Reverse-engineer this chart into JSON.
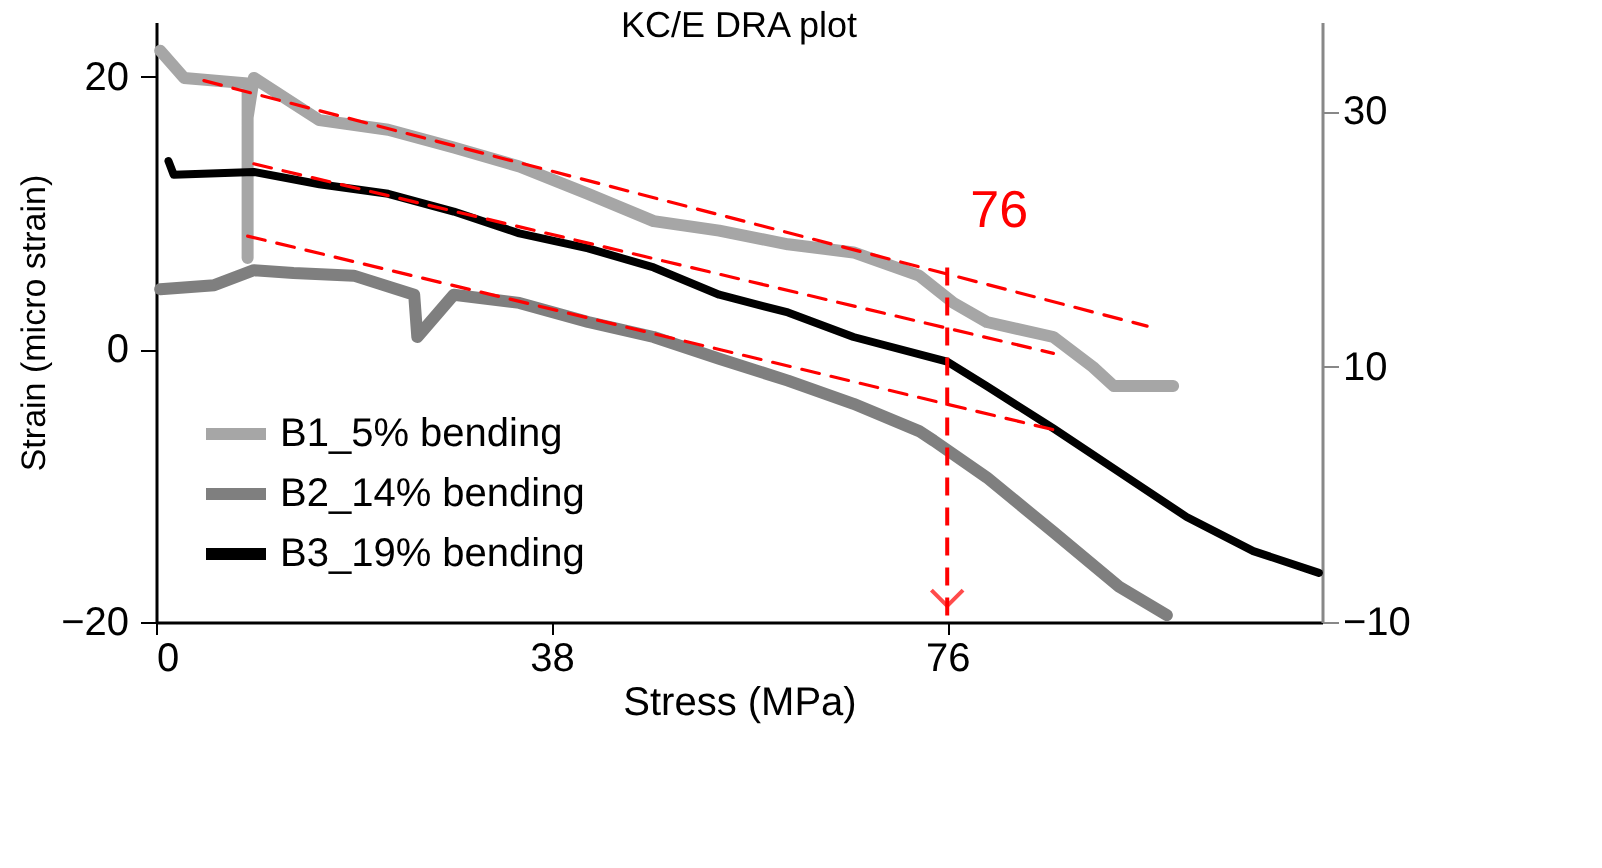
{
  "chart_data": {
    "type": "line",
    "title": "KC/E DRA plot",
    "xlabel": "Stress (MPa)",
    "ylabel": "Strain (micro strain)",
    "xlim": [
      0,
      112
    ],
    "xticks": [
      0,
      38,
      76
    ],
    "ylim": [
      -20,
      24
    ],
    "yticks": [
      -20,
      0,
      20
    ],
    "y2lim": [
      -10,
      37
    ],
    "y2ticks": [
      -10,
      10,
      30
    ],
    "grid": false,
    "legend": "bottom left",
    "marker": "none",
    "line_style": "solid",
    "series": [
      {
        "name": "B1_5% bending",
        "color": "#a6a6a6",
        "x": [
          0.4,
          2.7,
          8.8,
          8.8,
          8.8,
          9.4,
          15.7,
          22.3,
          28.6,
          34.9,
          41.5,
          47.8,
          54.1,
          60.7,
          67,
          73.3,
          76.6,
          79.8,
          86.2,
          90,
          92,
          97.7
        ],
        "values": [
          21.9,
          19.9,
          19.5,
          6.7,
          17.0,
          19.9,
          16.8,
          16.1,
          14.8,
          13.4,
          11.4,
          9.4,
          8.7,
          7.7,
          7.1,
          5.4,
          3.4,
          2.0,
          0.9,
          -1.3,
          -2.7,
          -2.7
        ]
      },
      {
        "name": "B2_14% bending",
        "color": "#7f7f7f",
        "x": [
          0.4,
          5.6,
          9.4,
          13.2,
          19,
          24.8,
          25.1,
          28.6,
          34.9,
          41.5,
          47.8,
          54.1,
          60.7,
          67,
          73.3,
          74.7,
          79.8,
          86.2,
          92.5,
          97.1
        ],
        "values": [
          4.4,
          4.7,
          5.8,
          5.6,
          5.4,
          4.0,
          0.9,
          4.0,
          3.4,
          2.0,
          0.9,
          -0.7,
          -2.3,
          -4.0,
          -6.0,
          -6.7,
          -9.4,
          -13.4,
          -17.4,
          -19.5
        ]
      },
      {
        "name": "B3_19% bending",
        "color": "#000000",
        "x": [
          1.2,
          1.7,
          9.4,
          15.7,
          22.3,
          28.6,
          34.9,
          41.5,
          47.8,
          54.1,
          60.7,
          67,
          76,
          79.8,
          86.2,
          92.5,
          99,
          105.4,
          111.7
        ],
        "values": [
          13.8,
          12.8,
          13.0,
          12.1,
          11.4,
          10.1,
          8.5,
          7.4,
          6.0,
          4.0,
          2.7,
          0.9,
          -0.9,
          -2.7,
          -5.8,
          -9.0,
          -12.3,
          -14.8,
          -16.4
        ]
      },
      {
        "color": "#ff0000",
        "line_style": "dashed",
        "x": [
          4.6,
          95.2
        ],
        "values": [
          19.7,
          1.7
        ]
      },
      {
        "color": "#ff0000",
        "line_style": "dashed",
        "x": [
          9.4,
          86.2
        ],
        "values": [
          13.6,
          -0.3
        ]
      },
      {
        "color": "#ff0000",
        "line_style": "dashed",
        "x": [
          8.8,
          86.2
        ],
        "values": [
          8.3,
          -5.9
        ]
      }
    ],
    "annotations": [
      {
        "text": "76",
        "x": 76,
        "y": 6.0
      }
    ]
  }
}
